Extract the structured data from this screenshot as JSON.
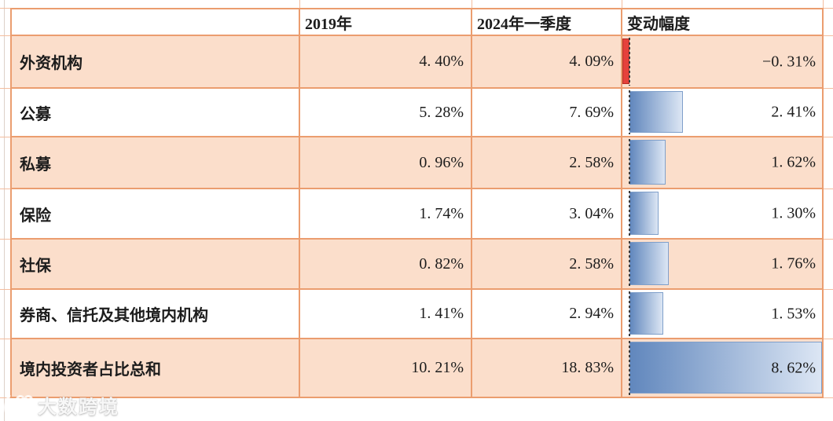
{
  "colors": {
    "table_border": "#eb9d6f",
    "outer_gridline": "#f3bd9e",
    "row_shaded_bg": "#fbdecb",
    "row_plain_bg": "#ffffff",
    "text": "#1c1c1c",
    "bar_blue_dark": "#6187bd",
    "bar_blue_light": "#dce6f4",
    "bar_blue_border": "#7f9fca",
    "bar_red": "#e5413b",
    "bar_red_border": "#b52c22",
    "axis_dash": "#3a3a3a",
    "watermark_color": "#ffffff"
  },
  "watermark": {
    "text": "大数跨境"
  },
  "chart_data": {
    "type": "table",
    "title": "",
    "columns": [
      "",
      "2019年",
      "2024年一季度",
      "变动幅度"
    ],
    "legend": "none",
    "databar_column": "变动幅度",
    "databar": {
      "min": -0.31,
      "max": 8.62,
      "axis_at": 0,
      "style": "excel-gradient-blue, negative red, dashed zero axis"
    },
    "rows": [
      {
        "label": "外资机构",
        "y2019": "4. 40%",
        "y2024q1": "4. 09%",
        "change_label": "−0. 31%",
        "change": -0.31
      },
      {
        "label": "公募",
        "y2019": "5. 28%",
        "y2024q1": "7. 69%",
        "change_label": "2. 41%",
        "change": 2.41
      },
      {
        "label": "私募",
        "y2019": "0. 96%",
        "y2024q1": "2. 58%",
        "change_label": "1. 62%",
        "change": 1.62
      },
      {
        "label": "保险",
        "y2019": "1. 74%",
        "y2024q1": "3. 04%",
        "change_label": "1. 30%",
        "change": 1.3
      },
      {
        "label": "社保",
        "y2019": "0. 82%",
        "y2024q1": "2. 58%",
        "change_label": "1. 76%",
        "change": 1.76
      },
      {
        "label": "券商、信托及其他境内机构",
        "y2019": "1. 41%",
        "y2024q1": "2. 94%",
        "change_label": "1. 53%",
        "change": 1.53
      },
      {
        "label": "境内投资者占比总和",
        "y2019": "10. 21%",
        "y2024q1": "18. 83%",
        "change_label": "8. 62%",
        "change": 8.62
      }
    ]
  }
}
